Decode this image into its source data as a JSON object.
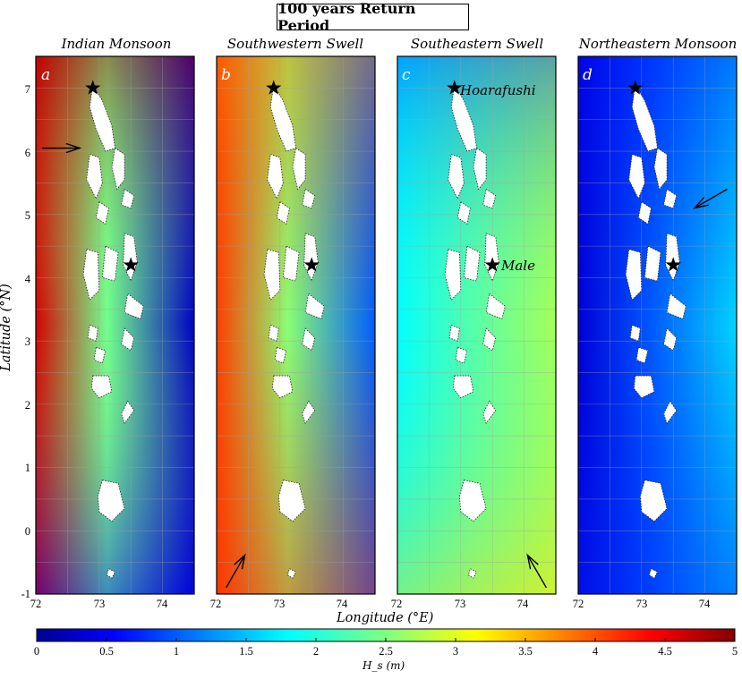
{
  "figure_title": "100 years Return Period",
  "chart_data": {
    "type": "heatmap",
    "xlabel": "Longitude (°E)",
    "ylabel": "Latitude (°N)",
    "xlim": [
      72,
      74.5
    ],
    "ylim": [
      -1,
      7.5
    ],
    "x_ticks": [
      "72",
      "73",
      "74"
    ],
    "y_ticks": [
      "-1",
      "0",
      "1",
      "2",
      "3",
      "4",
      "5",
      "6",
      "7"
    ],
    "grid": true,
    "colorbar": {
      "label": "H_s (m)",
      "range": [
        0,
        5
      ],
      "ticks": [
        "0",
        "0.5",
        "1",
        "1.5",
        "2",
        "2.5",
        "3",
        "3.5",
        "4",
        "4.5",
        "5"
      ],
      "colormap": "jet"
    },
    "markers": [
      {
        "name": "Hoarafushi",
        "lon": 72.9,
        "lat": 7.0
      },
      {
        "name": "Male",
        "lon": 73.5,
        "lat": 4.2
      }
    ],
    "panels": [
      {
        "letter": "a",
        "title": "Indian Monsoon",
        "incoming_from": "west",
        "arrow_dir_deg": 0,
        "arrow_lon": 72.1,
        "arrow_lat": 6.05,
        "field": {
          "left_hs": 4.6,
          "right_hs": 0.25,
          "north_hs": 4.8,
          "south_hs": 0.5
        }
      },
      {
        "letter": "b",
        "title": "Southwestern Swell",
        "incoming_from": "southwest",
        "arrow_dir_deg": 60,
        "arrow_lon": 72.15,
        "arrow_lat": -0.9,
        "field": {
          "left_hs": 4.1,
          "right_hs": 1.0,
          "north_hs": 3.8,
          "south_hs": 4.2
        }
      },
      {
        "letter": "c",
        "title": "Southeastern Swell",
        "incoming_from": "southeast",
        "arrow_dir_deg": 120,
        "arrow_lon": 74.35,
        "arrow_lat": -0.9,
        "field": {
          "left_hs": 1.8,
          "right_hs": 2.7,
          "north_hs": 0.8,
          "south_hs": 3.3
        }
      },
      {
        "letter": "d",
        "title": "Northeastern Monsoon",
        "incoming_from": "northeast",
        "arrow_dir_deg": 210,
        "arrow_lon": 74.35,
        "arrow_lat": 5.4,
        "field": {
          "left_hs": 0.35,
          "right_hs": 1.6,
          "north_hs": 0.6,
          "south_hs": 0.7
        }
      }
    ],
    "annotations": [
      "Hoarafushi",
      "Male"
    ]
  }
}
